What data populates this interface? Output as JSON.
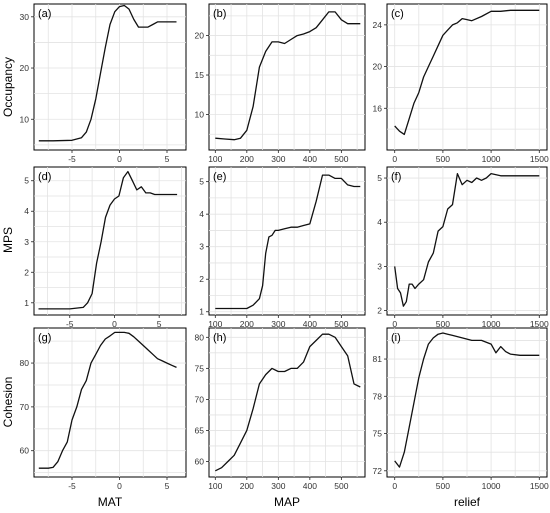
{
  "row_labels": [
    "Occupancy",
    "MPS",
    "Cohesion"
  ],
  "col_labels": [
    "MAT",
    "MAP",
    "relief"
  ],
  "chart_data": [
    {
      "panel": "(a)",
      "type": "line",
      "row": 0,
      "col": 0,
      "xlim": [
        -9,
        7
      ],
      "ylim": [
        4,
        32.5
      ],
      "xticks": [
        -5,
        0,
        5
      ],
      "yticks": [
        10,
        20,
        30
      ],
      "x": [
        -8.5,
        -7,
        -5,
        -4,
        -3.5,
        -3,
        -2.5,
        -2,
        -1.5,
        -1,
        -0.5,
        0,
        0.5,
        1,
        1.5,
        2,
        2.5,
        3,
        3.5,
        4,
        5,
        6
      ],
      "y": [
        5.8,
        5.8,
        5.9,
        6.4,
        7.5,
        10,
        14,
        19,
        24,
        28.5,
        31,
        32,
        32.2,
        31.5,
        29.5,
        28,
        28,
        28,
        28.5,
        29,
        29,
        29
      ]
    },
    {
      "panel": "(b)",
      "type": "line",
      "row": 0,
      "col": 1,
      "xlim": [
        80,
        575
      ],
      "ylim": [
        5.5,
        24
      ],
      "xticks": [
        100,
        200,
        300,
        400,
        500
      ],
      "yticks": [
        10,
        15,
        20
      ],
      "x": [
        100,
        130,
        160,
        180,
        200,
        220,
        240,
        260,
        280,
        300,
        320,
        340,
        360,
        380,
        400,
        420,
        440,
        460,
        480,
        500,
        520,
        540,
        560
      ],
      "y": [
        7,
        6.9,
        6.8,
        7,
        8,
        11,
        16,
        18,
        19.2,
        19.2,
        19,
        19.5,
        20,
        20.2,
        20.5,
        21,
        22,
        23,
        23,
        22,
        21.5,
        21.5,
        21.5
      ]
    },
    {
      "panel": "(c)",
      "type": "line",
      "row": 0,
      "col": 2,
      "xlim": [
        -80,
        1580
      ],
      "ylim": [
        12,
        26
      ],
      "xticks": [
        0,
        500,
        1000,
        1500
      ],
      "yticks": [
        16,
        20,
        24
      ],
      "x": [
        0,
        50,
        100,
        150,
        200,
        250,
        300,
        350,
        400,
        450,
        500,
        550,
        600,
        650,
        700,
        750,
        800,
        900,
        1000,
        1100,
        1200,
        1300,
        1400,
        1500
      ],
      "y": [
        14.3,
        13.8,
        13.5,
        15,
        16.5,
        17.5,
        19,
        20,
        21,
        22,
        23,
        23.5,
        24,
        24.2,
        24.6,
        24.5,
        24.4,
        24.8,
        25.3,
        25.3,
        25.4,
        25.4,
        25.4,
        25.4
      ]
    },
    {
      "panel": "(d)",
      "type": "line",
      "row": 1,
      "col": 0,
      "xlim": [
        -9,
        8
      ],
      "ylim": [
        0.6,
        5.45
      ],
      "xticks": [
        -5,
        0,
        5
      ],
      "yticks": [
        1,
        2,
        3,
        4,
        5
      ],
      "x": [
        -8.5,
        -7,
        -5,
        -3.5,
        -3,
        -2.5,
        -2,
        -1.5,
        -1,
        -0.5,
        0,
        0.5,
        1,
        1.5,
        2,
        2.5,
        3,
        3.5,
        4,
        4.5,
        5,
        6,
        7
      ],
      "y": [
        0.8,
        0.8,
        0.8,
        0.85,
        1,
        1.3,
        2.3,
        3,
        3.8,
        4.2,
        4.4,
        4.5,
        5.1,
        5.3,
        5,
        4.7,
        4.8,
        4.6,
        4.6,
        4.55,
        4.55,
        4.55,
        4.55
      ]
    },
    {
      "panel": "(e)",
      "type": "line",
      "row": 1,
      "col": 1,
      "xlim": [
        80,
        575
      ],
      "ylim": [
        0.9,
        5.45
      ],
      "xticks": [
        100,
        200,
        300,
        400,
        500
      ],
      "yticks": [
        1,
        2,
        3,
        4,
        5
      ],
      "x": [
        100,
        150,
        200,
        220,
        240,
        250,
        260,
        270,
        280,
        290,
        300,
        320,
        340,
        360,
        380,
        400,
        420,
        440,
        460,
        480,
        500,
        520,
        540,
        560
      ],
      "y": [
        1.1,
        1.1,
        1.1,
        1.2,
        1.4,
        1.8,
        2.8,
        3.3,
        3.35,
        3.5,
        3.5,
        3.55,
        3.6,
        3.6,
        3.65,
        3.7,
        4.4,
        5.2,
        5.2,
        5.1,
        5.1,
        4.9,
        4.85,
        4.85
      ]
    },
    {
      "panel": "(f)",
      "type": "line",
      "row": 1,
      "col": 2,
      "xlim": [
        -80,
        1580
      ],
      "ylim": [
        1.9,
        5.25
      ],
      "xticks": [
        0,
        500,
        1000,
        1500
      ],
      "yticks": [
        2,
        3,
        4,
        5
      ],
      "x": [
        0,
        30,
        60,
        90,
        120,
        150,
        180,
        210,
        250,
        300,
        350,
        400,
        450,
        500,
        550,
        600,
        650,
        700,
        750,
        800,
        850,
        900,
        950,
        1000,
        1100,
        1200,
        1300,
        1400,
        1500
      ],
      "y": [
        3,
        2.5,
        2.4,
        2.1,
        2.2,
        2.6,
        2.6,
        2.5,
        2.6,
        2.7,
        3.1,
        3.3,
        3.8,
        3.9,
        4.3,
        4.4,
        5.1,
        4.85,
        4.95,
        4.9,
        5,
        4.95,
        5,
        5.1,
        5.05,
        5.05,
        5.05,
        5.05,
        5.05
      ]
    },
    {
      "panel": "(g)",
      "type": "line",
      "row": 2,
      "col": 0,
      "xlim": [
        -9,
        7
      ],
      "ylim": [
        54,
        88
      ],
      "xticks": [
        -5,
        0,
        5
      ],
      "yticks": [
        60,
        70,
        80
      ],
      "x": [
        -8.5,
        -7.5,
        -7,
        -6.5,
        -6,
        -5.5,
        -5,
        -4.5,
        -4,
        -3.5,
        -3,
        -2.5,
        -2,
        -1.5,
        -1,
        -0.5,
        0,
        0.5,
        1,
        1.5,
        2,
        2.5,
        3,
        3.5,
        4,
        4.5,
        5,
        5.5,
        6
      ],
      "y": [
        56,
        56,
        56.2,
        57.5,
        60,
        62,
        67,
        70,
        74,
        76,
        80,
        82,
        84,
        85.5,
        86.2,
        87,
        87,
        87,
        86.8,
        86,
        85,
        84,
        83,
        82,
        81,
        80.5,
        80,
        79.5,
        79
      ]
    },
    {
      "panel": "(h)",
      "type": "line",
      "row": 2,
      "col": 1,
      "xlim": [
        80,
        575
      ],
      "ylim": [
        57.5,
        81.5
      ],
      "xticks": [
        100,
        200,
        300,
        400,
        500
      ],
      "yticks": [
        60,
        65,
        70,
        75,
        80
      ],
      "x": [
        100,
        120,
        140,
        160,
        180,
        200,
        220,
        240,
        260,
        280,
        300,
        320,
        340,
        360,
        380,
        400,
        420,
        440,
        460,
        480,
        500,
        520,
        540,
        560
      ],
      "y": [
        58.5,
        59,
        60,
        61,
        63,
        65,
        68.5,
        72.5,
        74,
        75,
        74.5,
        74.5,
        75,
        75,
        76,
        78.5,
        79.5,
        80.5,
        80.5,
        80,
        78.5,
        77,
        72.5,
        72
      ]
    },
    {
      "panel": "(i)",
      "type": "line",
      "row": 2,
      "col": 2,
      "xlim": [
        -80,
        1580
      ],
      "ylim": [
        71.5,
        83.5
      ],
      "xticks": [
        0,
        500,
        1000,
        1500
      ],
      "yticks": [
        72,
        75,
        78,
        81
      ],
      "x": [
        0,
        50,
        100,
        150,
        200,
        250,
        300,
        350,
        400,
        450,
        500,
        550,
        600,
        700,
        800,
        900,
        1000,
        1050,
        1100,
        1150,
        1200,
        1300,
        1400,
        1500
      ],
      "y": [
        72.8,
        72.3,
        73.5,
        75.5,
        77.5,
        79.5,
        81,
        82.2,
        82.7,
        83,
        83.1,
        83,
        82.9,
        82.7,
        82.5,
        82.5,
        82.2,
        81.5,
        82,
        81.6,
        81.4,
        81.3,
        81.3,
        81.3
      ]
    }
  ]
}
